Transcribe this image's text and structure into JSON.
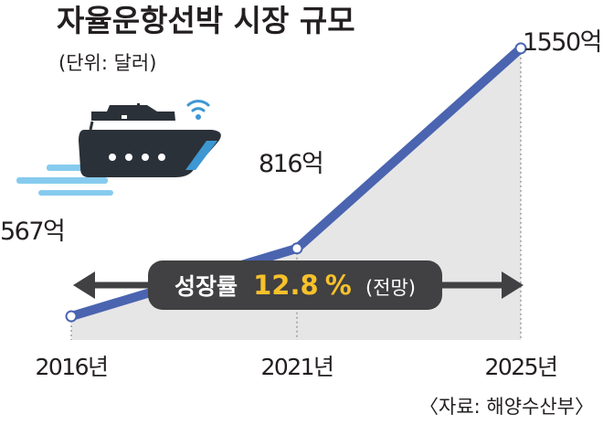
{
  "chart_data": {
    "type": "area",
    "title": "자율운항선박 시장 규모",
    "unit_note": "(단위: 달러)",
    "categories": [
      "2016년",
      "2021년",
      "2025년"
    ],
    "values": [
      567,
      816,
      1550
    ],
    "value_labels": [
      "567억",
      "816억",
      "1550억"
    ],
    "ylim": [
      480,
      1600
    ],
    "grid": false,
    "annotation": {
      "label": "성장률",
      "rate": "12.8",
      "rate_unit": "%",
      "note": "(전망)"
    },
    "source": "〈자료: 해양수산부〉"
  },
  "colors": {
    "line": "#4a64b0",
    "area": "#e6e6e6",
    "text": "#231f20",
    "pill": "#414042",
    "rate_highlight": "#f6c12b",
    "ship_hull": "#2b3138",
    "ship_stripe": "#3d97d3",
    "wake": "#86cbee"
  },
  "icons": {
    "illustration": "autonomous-ship-icon",
    "signal": "wifi-signal-icon"
  }
}
